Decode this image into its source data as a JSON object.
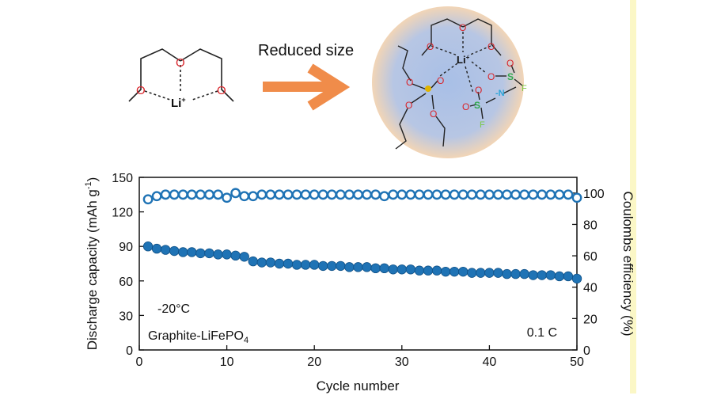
{
  "schematic": {
    "arrow_label": "Reduced size",
    "left_ion": "Li",
    "left_ion_charge": "+",
    "right_ion": "Li",
    "right_ion_charge": "+",
    "oxygen": "O",
    "sulfur": "S",
    "nitrogen": "N",
    "fluorine": "F",
    "nitrogen_charge": "-",
    "phosphorus_oxo": "O",
    "colors": {
      "oxygen": "#d9242a",
      "sulfur": "#32a84e",
      "nitrogen": "#2aa4d8",
      "fluorine": "#7ac943",
      "phosphorus": "#e0b400",
      "arrow": "#f08c4a",
      "sphere_center": "#a8bfe6",
      "sphere_edge": "#f2d5b6"
    }
  },
  "chart_data": {
    "type": "scatter",
    "xlabel": "Cycle number",
    "ylabel": "Discharge capacity (mAh g",
    "ylabel_sup": "-1",
    "ylabel_end": ")",
    "y2label": "Coulombs efficiency (%)",
    "xlim": [
      0,
      50
    ],
    "ylim": [
      0,
      150
    ],
    "y2lim": [
      0,
      110
    ],
    "xticks": [
      0,
      10,
      20,
      30,
      40,
      50
    ],
    "yticks": [
      0,
      30,
      60,
      90,
      120,
      150
    ],
    "y2ticks": [
      0,
      20,
      40,
      60,
      80,
      100
    ],
    "annotations": {
      "temperature": "-20°C",
      "cell_main": "Graphite-LiFePO",
      "cell_sub": "4",
      "rate": "0.1 C"
    },
    "marker_color": "#1f73b5",
    "series": [
      {
        "axis": "left",
        "style": "filled",
        "x": [
          1,
          2,
          3,
          4,
          5,
          6,
          7,
          8,
          9,
          10,
          11,
          12,
          13,
          14,
          15,
          16,
          17,
          18,
          19,
          20,
          21,
          22,
          23,
          24,
          25,
          26,
          27,
          28,
          29,
          30,
          31,
          32,
          33,
          34,
          35,
          36,
          37,
          38,
          39,
          40,
          41,
          42,
          43,
          44,
          45,
          46,
          47,
          48,
          49,
          50
        ],
        "values": [
          90,
          88,
          87,
          86,
          85,
          85,
          84,
          84,
          83,
          83,
          82,
          81,
          77,
          76,
          76,
          75,
          75,
          74,
          74,
          74,
          73,
          73,
          73,
          72,
          72,
          72,
          71,
          71,
          70,
          70,
          70,
          69,
          69,
          69,
          68,
          68,
          68,
          67,
          67,
          67,
          67,
          66,
          66,
          66,
          65,
          65,
          65,
          64,
          64,
          62
        ]
      },
      {
        "axis": "right",
        "style": "hollow",
        "x": [
          1,
          2,
          3,
          4,
          5,
          6,
          7,
          8,
          9,
          10,
          11,
          12,
          13,
          14,
          15,
          16,
          17,
          18,
          19,
          20,
          21,
          22,
          23,
          24,
          25,
          26,
          27,
          28,
          29,
          30,
          31,
          32,
          33,
          34,
          35,
          36,
          37,
          38,
          39,
          40,
          41,
          42,
          43,
          44,
          45,
          46,
          47,
          48,
          49,
          50
        ],
        "values": [
          96,
          98,
          99,
          99,
          99,
          99,
          99,
          99,
          99,
          97,
          100,
          98,
          98,
          99,
          99,
          99,
          99,
          99,
          99,
          99,
          99,
          99,
          99,
          99,
          99,
          99,
          99,
          98,
          99,
          99,
          99,
          99,
          99,
          99,
          99,
          99,
          99,
          99,
          99,
          99,
          99,
          99,
          99,
          99,
          99,
          99,
          99,
          99,
          99,
          97
        ]
      }
    ]
  }
}
